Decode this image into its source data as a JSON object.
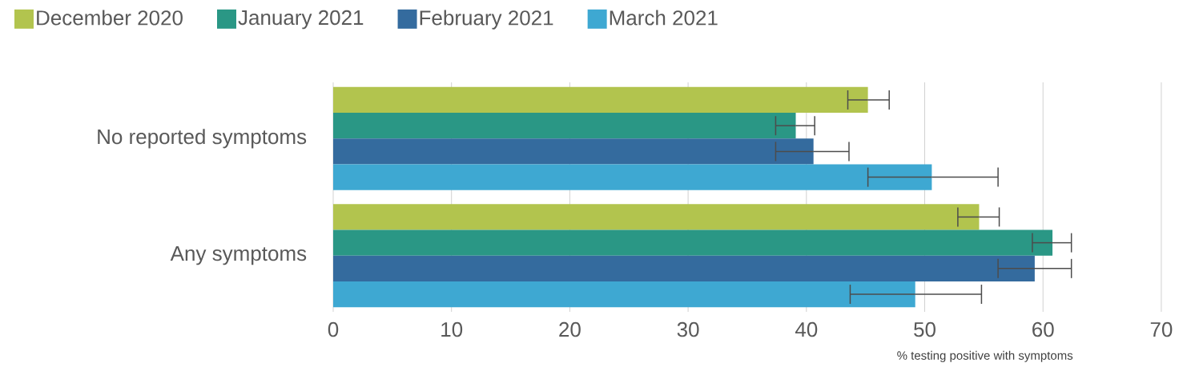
{
  "chart_data": {
    "type": "bar",
    "orientation": "horizontal",
    "xlabel": "% testing positive with symptoms",
    "categories": [
      "No reported symptoms",
      "Any symptoms"
    ],
    "series": [
      {
        "name": "December 2020",
        "color": "#b2c44e",
        "values": [
          45.2,
          54.6
        ],
        "errors": [
          [
            43.5,
            47.0
          ],
          [
            52.8,
            56.3
          ]
        ]
      },
      {
        "name": "January 2021",
        "color": "#2a9785",
        "values": [
          39.1,
          60.8
        ],
        "errors": [
          [
            37.4,
            40.7
          ],
          [
            59.1,
            62.4
          ]
        ]
      },
      {
        "name": "February 2021",
        "color": "#346b9e",
        "values": [
          40.6,
          59.3
        ],
        "errors": [
          [
            37.4,
            43.6
          ],
          [
            56.2,
            62.4
          ]
        ]
      },
      {
        "name": "March 2021",
        "color": "#3ea8d2",
        "values": [
          50.6,
          49.2
        ],
        "errors": [
          [
            45.2,
            56.2
          ],
          [
            43.7,
            54.8
          ]
        ]
      }
    ],
    "xlim": [
      0,
      70
    ],
    "xticks": [
      0,
      10,
      20,
      30,
      40,
      50,
      60,
      70
    ],
    "grid": "x",
    "legend": "top left"
  }
}
